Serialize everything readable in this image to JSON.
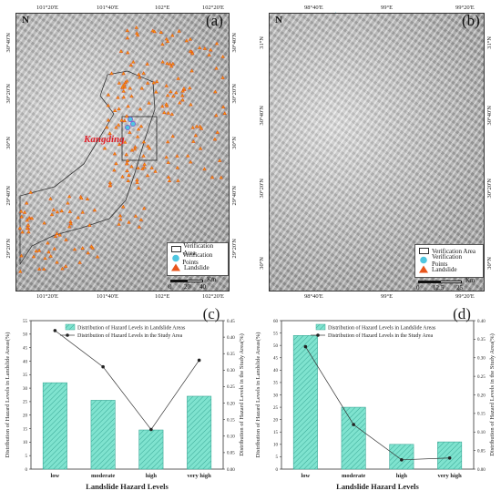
{
  "maps": [
    {
      "letter": "(a)",
      "north": "N",
      "top_ticks": [
        "101°20'E",
        "101°40'E",
        "102°E",
        "102°20'E"
      ],
      "bottom_ticks": [
        "101°20'E",
        "101°40'E",
        "102°E",
        "102°20'E"
      ],
      "left_ticks": [
        "30°40'N",
        "30°20'N",
        "30°N",
        "29°40'N",
        "29°20'N"
      ],
      "right_ticks": [
        "30°40'N",
        "30°20'N",
        "30°N",
        "29°40'N",
        "29°20'N"
      ],
      "town": "Kangding",
      "legend": [
        "Verification Area",
        "Verification Points",
        "Landslide"
      ],
      "scale_labels": [
        "0",
        "20",
        "40"
      ],
      "scale_unit": "Km"
    },
    {
      "letter": "(b)",
      "north": "N",
      "top_ticks": [
        "98°40'E",
        "99°E",
        "99°20'E"
      ],
      "bottom_ticks": [
        "98°40'E",
        "99°E",
        "99°20'E"
      ],
      "left_ticks": [
        "31°N",
        "30°40'N",
        "30°20'N",
        "30°N"
      ],
      "right_ticks": [
        "31°N",
        "30°40'N",
        "30°20'N",
        "30°N"
      ],
      "legend": [
        "Verification Area",
        "Verification Points",
        "Landslide"
      ],
      "scale_labels": [
        "0",
        "12.5",
        "25"
      ],
      "scale_unit": "Km"
    }
  ],
  "chart_data": [
    {
      "panel": "(c)",
      "type": "bar",
      "categories": [
        "low",
        "moderate",
        "high",
        "very high"
      ],
      "series": [
        {
          "name": "Distribution of Hazard Levels in Landslide Areas",
          "kind": "bar",
          "axis": "left",
          "values": [
            32,
            25.5,
            14.5,
            27
          ]
        },
        {
          "name": "Distribution of Hazard Levels in the Study Area",
          "kind": "line",
          "axis": "right",
          "values": [
            0.42,
            0.31,
            0.12,
            0.33
          ]
        }
      ],
      "xlabel": "Landslide Hazard Levels",
      "ylabel_left": "Distribution of Hazard Levels in Landslide Areas(%)",
      "ylabel_right": "Distribution of Hazard Levels in the Study Area(%)",
      "ylim_left": [
        0,
        55
      ],
      "yticks_left": [
        "0",
        "5",
        "10",
        "15",
        "20",
        "25",
        "30",
        "35",
        "40",
        "45",
        "50",
        "55"
      ],
      "ylim_right": [
        0,
        0.45
      ],
      "yticks_right": [
        "0.00",
        "0.05",
        "0.10",
        "0.15",
        "0.20",
        "0.25",
        "0.30",
        "0.35",
        "0.40",
        "0.45"
      ],
      "bar_color": "#7fe3cf",
      "legend_position": "top"
    },
    {
      "panel": "(d)",
      "type": "bar",
      "categories": [
        "low",
        "moderate",
        "high",
        "very high"
      ],
      "series": [
        {
          "name": "Distribution of Hazard Levels in Landslide Areas",
          "kind": "bar",
          "axis": "left",
          "values": [
            54,
            25,
            10,
            11
          ]
        },
        {
          "name": "Distribution of Hazard Levels in the Study Area",
          "kind": "line",
          "axis": "right",
          "values": [
            0.33,
            0.12,
            0.025,
            0.03
          ]
        }
      ],
      "xlabel": "Landslide Hazard Levels",
      "ylabel_left": "Distribution of Hazard Levels in Landslide Areas(%)",
      "ylabel_right": "Distribution of Hazard Levels in the Study Area(%)",
      "ylim_left": [
        0,
        60
      ],
      "yticks_left": [
        "0",
        "5",
        "10",
        "15",
        "20",
        "25",
        "30",
        "35",
        "40",
        "45",
        "50",
        "55",
        "60"
      ],
      "ylim_right": [
        0,
        0.4
      ],
      "yticks_right": [
        "0.00",
        "0.05",
        "0.10",
        "0.15",
        "0.20",
        "0.25",
        "0.30",
        "0.35",
        "0.40"
      ],
      "bar_color": "#7fe3cf",
      "legend_position": "top"
    }
  ],
  "colors": {
    "landslide": "#e8551c",
    "landslide_dot": "#f0b000",
    "verification_point": "#4fc6e0",
    "river": "#1ab8d8",
    "town": "#e0202a"
  }
}
